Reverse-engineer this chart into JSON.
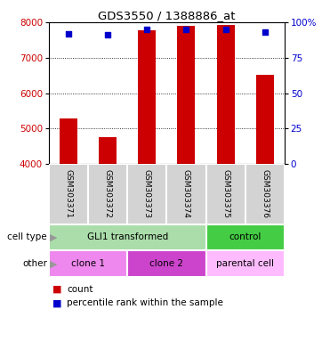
{
  "title": "GDS3550 / 1388886_at",
  "samples": [
    "GSM303371",
    "GSM303372",
    "GSM303373",
    "GSM303374",
    "GSM303375",
    "GSM303376"
  ],
  "counts": [
    5280,
    4760,
    7780,
    7900,
    7920,
    6520
  ],
  "percentile_ranks": [
    92,
    91,
    95,
    95,
    95,
    93
  ],
  "ylim": [
    4000,
    8000
  ],
  "yticks": [
    4000,
    5000,
    6000,
    7000,
    8000
  ],
  "y2ticks": [
    0,
    25,
    50,
    75,
    100
  ],
  "bar_color": "#cc0000",
  "dot_color": "#0000cc",
  "cell_type_groups": [
    {
      "label": "GLI1 transformed",
      "start": 0,
      "end": 4,
      "color": "#aaddaa"
    },
    {
      "label": "control",
      "start": 4,
      "end": 6,
      "color": "#44cc44"
    }
  ],
  "other_groups": [
    {
      "label": "clone 1",
      "start": 0,
      "end": 2,
      "color": "#ee88ee"
    },
    {
      "label": "clone 2",
      "start": 2,
      "end": 4,
      "color": "#cc44cc"
    },
    {
      "label": "parental cell",
      "start": 4,
      "end": 6,
      "color": "#ffbbff"
    }
  ],
  "ylabel_left_color": "#cc0000",
  "ylabel_right_color": "#0000cc",
  "background_color": "#ffffff"
}
